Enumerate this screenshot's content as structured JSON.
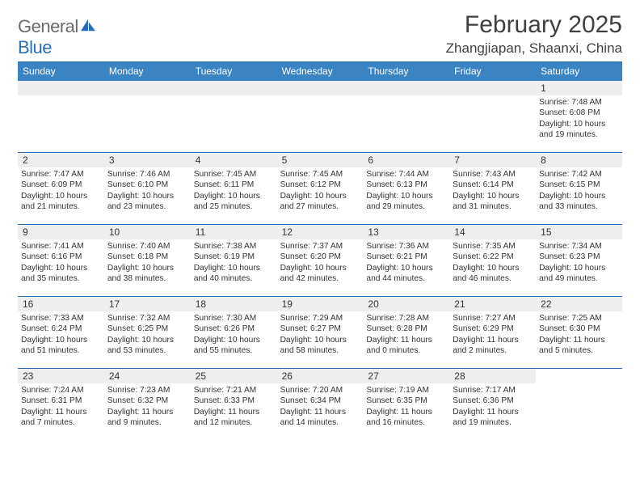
{
  "logo": {
    "word1": "General",
    "word2": "Blue"
  },
  "title": "February 2025",
  "subtitle": "Zhangjiapan, Shaanxi, China",
  "colors": {
    "header_bg": "#3b84c4",
    "accent": "#2a6fb5",
    "text": "#333333",
    "daynum_bg": "#eeeeee",
    "logo_gray": "#6b6b6b"
  },
  "dayNames": [
    "Sunday",
    "Monday",
    "Tuesday",
    "Wednesday",
    "Thursday",
    "Friday",
    "Saturday"
  ],
  "weeks": [
    [
      {
        "blank": true
      },
      {
        "blank": true
      },
      {
        "blank": true
      },
      {
        "blank": true
      },
      {
        "blank": true
      },
      {
        "blank": true
      },
      {
        "n": "1",
        "sr": "Sunrise: 7:48 AM",
        "ss": "Sunset: 6:08 PM",
        "dl1": "Daylight: 10 hours",
        "dl2": "and 19 minutes."
      }
    ],
    [
      {
        "n": "2",
        "sr": "Sunrise: 7:47 AM",
        "ss": "Sunset: 6:09 PM",
        "dl1": "Daylight: 10 hours",
        "dl2": "and 21 minutes."
      },
      {
        "n": "3",
        "sr": "Sunrise: 7:46 AM",
        "ss": "Sunset: 6:10 PM",
        "dl1": "Daylight: 10 hours",
        "dl2": "and 23 minutes."
      },
      {
        "n": "4",
        "sr": "Sunrise: 7:45 AM",
        "ss": "Sunset: 6:11 PM",
        "dl1": "Daylight: 10 hours",
        "dl2": "and 25 minutes."
      },
      {
        "n": "5",
        "sr": "Sunrise: 7:45 AM",
        "ss": "Sunset: 6:12 PM",
        "dl1": "Daylight: 10 hours",
        "dl2": "and 27 minutes."
      },
      {
        "n": "6",
        "sr": "Sunrise: 7:44 AM",
        "ss": "Sunset: 6:13 PM",
        "dl1": "Daylight: 10 hours",
        "dl2": "and 29 minutes."
      },
      {
        "n": "7",
        "sr": "Sunrise: 7:43 AM",
        "ss": "Sunset: 6:14 PM",
        "dl1": "Daylight: 10 hours",
        "dl2": "and 31 minutes."
      },
      {
        "n": "8",
        "sr": "Sunrise: 7:42 AM",
        "ss": "Sunset: 6:15 PM",
        "dl1": "Daylight: 10 hours",
        "dl2": "and 33 minutes."
      }
    ],
    [
      {
        "n": "9",
        "sr": "Sunrise: 7:41 AM",
        "ss": "Sunset: 6:16 PM",
        "dl1": "Daylight: 10 hours",
        "dl2": "and 35 minutes."
      },
      {
        "n": "10",
        "sr": "Sunrise: 7:40 AM",
        "ss": "Sunset: 6:18 PM",
        "dl1": "Daylight: 10 hours",
        "dl2": "and 38 minutes."
      },
      {
        "n": "11",
        "sr": "Sunrise: 7:38 AM",
        "ss": "Sunset: 6:19 PM",
        "dl1": "Daylight: 10 hours",
        "dl2": "and 40 minutes."
      },
      {
        "n": "12",
        "sr": "Sunrise: 7:37 AM",
        "ss": "Sunset: 6:20 PM",
        "dl1": "Daylight: 10 hours",
        "dl2": "and 42 minutes."
      },
      {
        "n": "13",
        "sr": "Sunrise: 7:36 AM",
        "ss": "Sunset: 6:21 PM",
        "dl1": "Daylight: 10 hours",
        "dl2": "and 44 minutes."
      },
      {
        "n": "14",
        "sr": "Sunrise: 7:35 AM",
        "ss": "Sunset: 6:22 PM",
        "dl1": "Daylight: 10 hours",
        "dl2": "and 46 minutes."
      },
      {
        "n": "15",
        "sr": "Sunrise: 7:34 AM",
        "ss": "Sunset: 6:23 PM",
        "dl1": "Daylight: 10 hours",
        "dl2": "and 49 minutes."
      }
    ],
    [
      {
        "n": "16",
        "sr": "Sunrise: 7:33 AM",
        "ss": "Sunset: 6:24 PM",
        "dl1": "Daylight: 10 hours",
        "dl2": "and 51 minutes."
      },
      {
        "n": "17",
        "sr": "Sunrise: 7:32 AM",
        "ss": "Sunset: 6:25 PM",
        "dl1": "Daylight: 10 hours",
        "dl2": "and 53 minutes."
      },
      {
        "n": "18",
        "sr": "Sunrise: 7:30 AM",
        "ss": "Sunset: 6:26 PM",
        "dl1": "Daylight: 10 hours",
        "dl2": "and 55 minutes."
      },
      {
        "n": "19",
        "sr": "Sunrise: 7:29 AM",
        "ss": "Sunset: 6:27 PM",
        "dl1": "Daylight: 10 hours",
        "dl2": "and 58 minutes."
      },
      {
        "n": "20",
        "sr": "Sunrise: 7:28 AM",
        "ss": "Sunset: 6:28 PM",
        "dl1": "Daylight: 11 hours",
        "dl2": "and 0 minutes."
      },
      {
        "n": "21",
        "sr": "Sunrise: 7:27 AM",
        "ss": "Sunset: 6:29 PM",
        "dl1": "Daylight: 11 hours",
        "dl2": "and 2 minutes."
      },
      {
        "n": "22",
        "sr": "Sunrise: 7:25 AM",
        "ss": "Sunset: 6:30 PM",
        "dl1": "Daylight: 11 hours",
        "dl2": "and 5 minutes."
      }
    ],
    [
      {
        "n": "23",
        "sr": "Sunrise: 7:24 AM",
        "ss": "Sunset: 6:31 PM",
        "dl1": "Daylight: 11 hours",
        "dl2": "and 7 minutes."
      },
      {
        "n": "24",
        "sr": "Sunrise: 7:23 AM",
        "ss": "Sunset: 6:32 PM",
        "dl1": "Daylight: 11 hours",
        "dl2": "and 9 minutes."
      },
      {
        "n": "25",
        "sr": "Sunrise: 7:21 AM",
        "ss": "Sunset: 6:33 PM",
        "dl1": "Daylight: 11 hours",
        "dl2": "and 12 minutes."
      },
      {
        "n": "26",
        "sr": "Sunrise: 7:20 AM",
        "ss": "Sunset: 6:34 PM",
        "dl1": "Daylight: 11 hours",
        "dl2": "and 14 minutes."
      },
      {
        "n": "27",
        "sr": "Sunrise: 7:19 AM",
        "ss": "Sunset: 6:35 PM",
        "dl1": "Daylight: 11 hours",
        "dl2": "and 16 minutes."
      },
      {
        "n": "28",
        "sr": "Sunrise: 7:17 AM",
        "ss": "Sunset: 6:36 PM",
        "dl1": "Daylight: 11 hours",
        "dl2": "and 19 minutes."
      },
      {
        "blank": true,
        "noBg": true
      }
    ]
  ]
}
